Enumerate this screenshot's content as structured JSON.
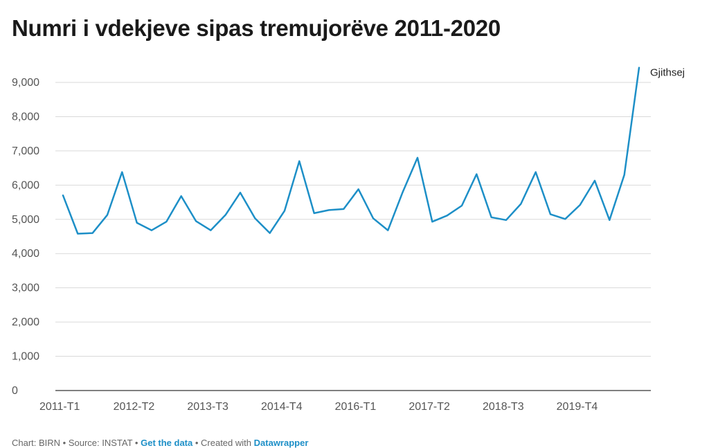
{
  "chart_data": {
    "type": "line",
    "title": "Numri i vdekjeve sipas tremujorëve 2011-2020",
    "xlabel": "",
    "ylabel": "",
    "ylim": [
      0,
      10000
    ],
    "yticks": [
      0,
      1000,
      2000,
      3000,
      4000,
      5000,
      6000,
      7000,
      8000,
      9000
    ],
    "ytick_labels": [
      "0",
      "1,000",
      "2,000",
      "3,000",
      "4,000",
      "5,000",
      "6,000",
      "7,000",
      "8,000",
      "9,000"
    ],
    "x_tick_labels": [
      "2011-T1",
      "2012-T2",
      "2013-T3",
      "2014-T4",
      "2016-T1",
      "2017-T2",
      "2018-T3",
      "2019-T4"
    ],
    "x_tick_indices": [
      0,
      5,
      10,
      15,
      20,
      25,
      30,
      35
    ],
    "grid": true,
    "series": [
      {
        "name": "Gjithsej",
        "color": "#1d8fc7",
        "values": [
          5700,
          4580,
          4600,
          5130,
          6380,
          4900,
          4680,
          4930,
          5680,
          4950,
          4680,
          5130,
          5780,
          5030,
          4600,
          5250,
          6700,
          5180,
          5270,
          5300,
          5880,
          5030,
          4680,
          5800,
          6800,
          4930,
          5110,
          5400,
          6320,
          5060,
          4980,
          5450,
          6380,
          5150,
          5010,
          5420,
          6130,
          4980,
          6300,
          9430
        ]
      }
    ]
  },
  "footer": {
    "source_text": "Chart: BIRN • Source: INSTAT •",
    "get_data_label": "Get the data",
    "created_text": "• Created with",
    "tool_label": "Datawrapper"
  }
}
